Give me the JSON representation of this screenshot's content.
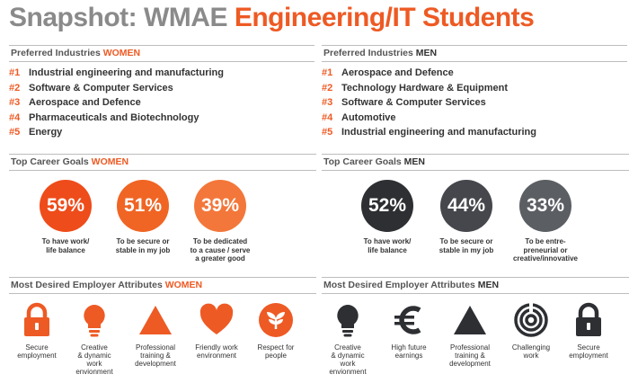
{
  "title": {
    "part1": "Snapshot: WMAE ",
    "part2": "Engineering/IT Students"
  },
  "women": {
    "industries_head": {
      "text": "Preferred Industries ",
      "accent": "WOMEN"
    },
    "industries": [
      {
        "rank": "#1",
        "name": "Industrial engineering and manufacturing"
      },
      {
        "rank": "#2",
        "name": "Software & Computer Services"
      },
      {
        "rank": "#3",
        "name": "Aerospace and Defence"
      },
      {
        "rank": "#4",
        "name": "Pharmaceuticals and Biotechnology"
      },
      {
        "rank": "#5",
        "name": "Energy"
      }
    ],
    "goals_head": {
      "text": "Top Career Goals ",
      "accent": "WOMEN"
    },
    "goals": [
      {
        "percent": "59%",
        "line1": "To have work/",
        "line2": "life balance",
        "line3": "",
        "color": "#ee4c1a"
      },
      {
        "percent": "51%",
        "line1": "To be secure or",
        "line2": "stable in my job",
        "line3": "",
        "color": "#f06524"
      },
      {
        "percent": "39%",
        "line1": "To be dedicated",
        "line2": "to a cause / serve",
        "line3": "a greater good",
        "color": "#f3773a"
      }
    ],
    "attrs_head": {
      "text": "Most Desired Employer Attributes ",
      "accent": "WOMEN"
    },
    "attrs": [
      {
        "icon": "lock-icon",
        "line1": "Secure",
        "line2": "employment",
        "line3": "",
        "line4": ""
      },
      {
        "icon": "lightbulb-icon",
        "line1": "Creative",
        "line2": "& dynamic",
        "line3": "work",
        "line4": "envionment"
      },
      {
        "icon": "triangle-icon",
        "line1": "Professional",
        "line2": "training &",
        "line3": "development",
        "line4": ""
      },
      {
        "icon": "heart-icon",
        "line1": "Friendly work",
        "line2": "environment",
        "line3": "",
        "line4": ""
      },
      {
        "icon": "plant-icon",
        "line1": "Respect for",
        "line2": "people",
        "line3": "",
        "line4": ""
      }
    ],
    "accent_color": "#ee5a24"
  },
  "men": {
    "industries_head": {
      "text": "Preferred Industries ",
      "accent": "MEN"
    },
    "industries": [
      {
        "rank": "#1",
        "name": "Aerospace and Defence"
      },
      {
        "rank": "#2",
        "name": "Technology Hardware & Equipment"
      },
      {
        "rank": "#3",
        "name": "Software & Computer Services"
      },
      {
        "rank": "#4",
        "name": "Automotive"
      },
      {
        "rank": "#5",
        "name": "Industrial engineering and manufacturing"
      }
    ],
    "goals_head": {
      "text": "Top Career Goals ",
      "accent": "MEN"
    },
    "goals": [
      {
        "percent": "52%",
        "line1": "To have work/",
        "line2": "life balance",
        "line3": "",
        "color": "#2d2f33"
      },
      {
        "percent": "44%",
        "line1": "To be secure or",
        "line2": "stable in my job",
        "line3": "",
        "color": "#45474c"
      },
      {
        "percent": "33%",
        "line1": "To be entre-",
        "line2": "preneurial or",
        "line3": "creative/innovative",
        "color": "#5b5e63"
      }
    ],
    "attrs_head": {
      "text": "Most Desired Employer Attributes ",
      "accent": "MEN"
    },
    "attrs": [
      {
        "icon": "lightbulb-icon",
        "line1": "Creative",
        "line2": "& dynamic",
        "line3": "work",
        "line4": "envionment"
      },
      {
        "icon": "euro-icon",
        "line1": "High future",
        "line2": "earnings",
        "line3": "",
        "line4": ""
      },
      {
        "icon": "triangle-icon",
        "line1": "Professional",
        "line2": "training &",
        "line3": "development",
        "line4": ""
      },
      {
        "icon": "target-icon",
        "line1": "Challenging",
        "line2": "work",
        "line3": "",
        "line4": ""
      },
      {
        "icon": "lock-icon",
        "line1": "Secure",
        "line2": "employment",
        "line3": "",
        "line4": ""
      }
    ],
    "accent_color": "#2d2f33"
  }
}
